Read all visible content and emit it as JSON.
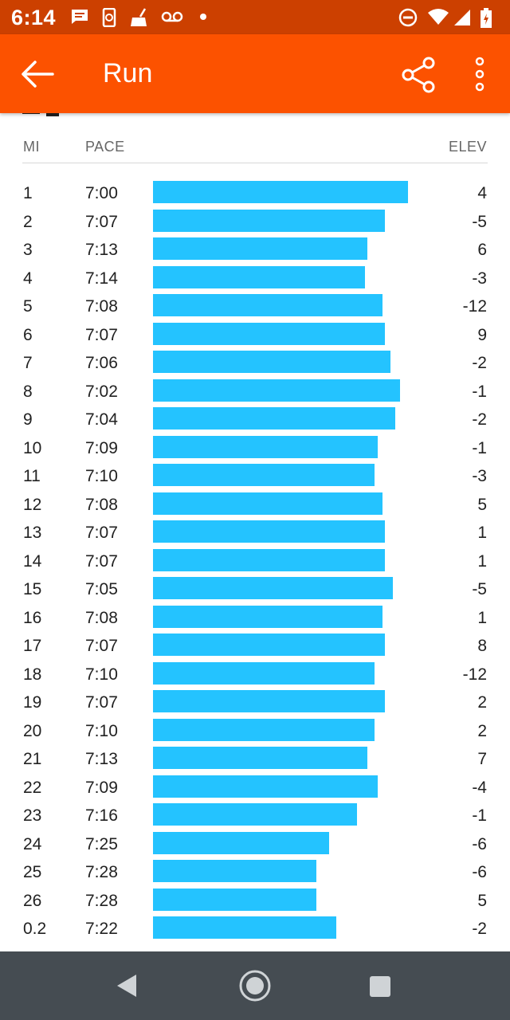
{
  "status_bar": {
    "time": "6:14",
    "left_icons": [
      "message-icon",
      "phone-sync-icon",
      "cleaner-icon",
      "voicemail-icon",
      "dot-icon"
    ],
    "right_icons": [
      "do-not-disturb-icon",
      "wifi-icon",
      "signal-icon",
      "battery-charging-icon"
    ]
  },
  "app_bar": {
    "title": "Run",
    "back_icon": "arrow-back-icon",
    "share_icon": "share-icon",
    "more_icon": "more-vert-icon",
    "color": "#fc5200"
  },
  "splits": {
    "headers": {
      "mi": "MI",
      "pace": "PACE",
      "elev": "ELEV"
    },
    "bar_color": "#24c3ff",
    "rows": [
      {
        "mi": "1",
        "pace": "7:00",
        "elev": "4",
        "bar_level": 1.0
      },
      {
        "mi": "2",
        "pace": "7:07",
        "elev": "-5",
        "bar_level": 0.91
      },
      {
        "mi": "3",
        "pace": "7:13",
        "elev": "6",
        "bar_level": 0.84
      },
      {
        "mi": "4",
        "pace": "7:14",
        "elev": "-3",
        "bar_level": 0.83
      },
      {
        "mi": "5",
        "pace": "7:08",
        "elev": "-12",
        "bar_level": 0.9
      },
      {
        "mi": "6",
        "pace": "7:07",
        "elev": "9",
        "bar_level": 0.91
      },
      {
        "mi": "7",
        "pace": "7:06",
        "elev": "-2",
        "bar_level": 0.93
      },
      {
        "mi": "8",
        "pace": "7:02",
        "elev": "-1",
        "bar_level": 0.97
      },
      {
        "mi": "9",
        "pace": "7:04",
        "elev": "-2",
        "bar_level": 0.95
      },
      {
        "mi": "10",
        "pace": "7:09",
        "elev": "-1",
        "bar_level": 0.88
      },
      {
        "mi": "11",
        "pace": "7:10",
        "elev": "-3",
        "bar_level": 0.87
      },
      {
        "mi": "12",
        "pace": "7:08",
        "elev": "5",
        "bar_level": 0.9
      },
      {
        "mi": "13",
        "pace": "7:07",
        "elev": "1",
        "bar_level": 0.91
      },
      {
        "mi": "14",
        "pace": "7:07",
        "elev": "1",
        "bar_level": 0.91
      },
      {
        "mi": "15",
        "pace": "7:05",
        "elev": "-5",
        "bar_level": 0.94
      },
      {
        "mi": "16",
        "pace": "7:08",
        "elev": "1",
        "bar_level": 0.9
      },
      {
        "mi": "17",
        "pace": "7:07",
        "elev": "8",
        "bar_level": 0.91
      },
      {
        "mi": "18",
        "pace": "7:10",
        "elev": "-12",
        "bar_level": 0.87
      },
      {
        "mi": "19",
        "pace": "7:07",
        "elev": "2",
        "bar_level": 0.91
      },
      {
        "mi": "20",
        "pace": "7:10",
        "elev": "2",
        "bar_level": 0.87
      },
      {
        "mi": "21",
        "pace": "7:13",
        "elev": "7",
        "bar_level": 0.84
      },
      {
        "mi": "22",
        "pace": "7:09",
        "elev": "-4",
        "bar_level": 0.88
      },
      {
        "mi": "23",
        "pace": "7:16",
        "elev": "-1",
        "bar_level": 0.8
      },
      {
        "mi": "24",
        "pace": "7:25",
        "elev": "-6",
        "bar_level": 0.69
      },
      {
        "mi": "25",
        "pace": "7:28",
        "elev": "-6",
        "bar_level": 0.64
      },
      {
        "mi": "26",
        "pace": "7:28",
        "elev": "5",
        "bar_level": 0.64
      },
      {
        "mi": "0.2",
        "pace": "7:22",
        "elev": "-2",
        "bar_level": 0.72
      }
    ]
  },
  "nav_bar": {
    "buttons": [
      "back-triangle-icon",
      "home-circle-icon",
      "recents-square-icon"
    ]
  }
}
